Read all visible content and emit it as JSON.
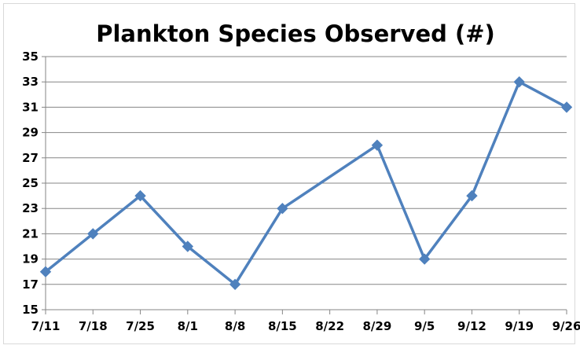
{
  "chart_data": {
    "type": "line",
    "title": "Plankton Species Observed (#)",
    "xlabel": "",
    "ylabel": "",
    "categories": [
      "7/11",
      "7/18",
      "7/25",
      "8/1",
      "8/8",
      "8/15",
      "8/22",
      "8/29",
      "9/5",
      "9/12",
      "9/19",
      "9/26"
    ],
    "series": [
      {
        "points": [
          {
            "x": "7/11",
            "y": 18
          },
          {
            "x": "7/18",
            "y": 21
          },
          {
            "x": "7/25",
            "y": 24
          },
          {
            "x": "8/1",
            "y": 20
          },
          {
            "x": "8/8",
            "y": 17
          },
          {
            "x": "8/15",
            "y": 23
          },
          {
            "x": "8/29",
            "y": 28
          },
          {
            "x": "9/5",
            "y": 19
          },
          {
            "x": "9/12",
            "y": 24
          },
          {
            "x": "9/19",
            "y": 33
          },
          {
            "x": "9/26",
            "y": 31
          }
        ]
      }
    ],
    "ylim": [
      15,
      35
    ],
    "yticks": [
      "15",
      "17",
      "19",
      "21",
      "23",
      "25",
      "27",
      "29",
      "31",
      "33",
      "35"
    ],
    "grid": true,
    "legend": "none",
    "marker": "diamond",
    "line_color": "#4f81bd",
    "grid_color": "#868686"
  }
}
